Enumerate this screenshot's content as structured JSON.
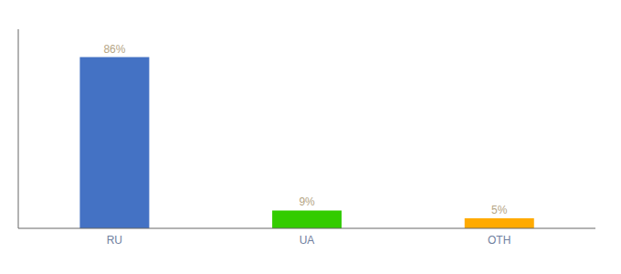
{
  "chart_data": {
    "type": "bar",
    "categories": [
      "RU",
      "UA",
      "OTH"
    ],
    "values": [
      86,
      9,
      5
    ],
    "value_labels": [
      "86%",
      "9%",
      "5%"
    ],
    "colors": [
      "#4472c4",
      "#33cc00",
      "#ffaa00"
    ],
    "ylim": [
      0,
      100
    ],
    "data_labels": true,
    "grid": false,
    "tick_labels": "x"
  }
}
